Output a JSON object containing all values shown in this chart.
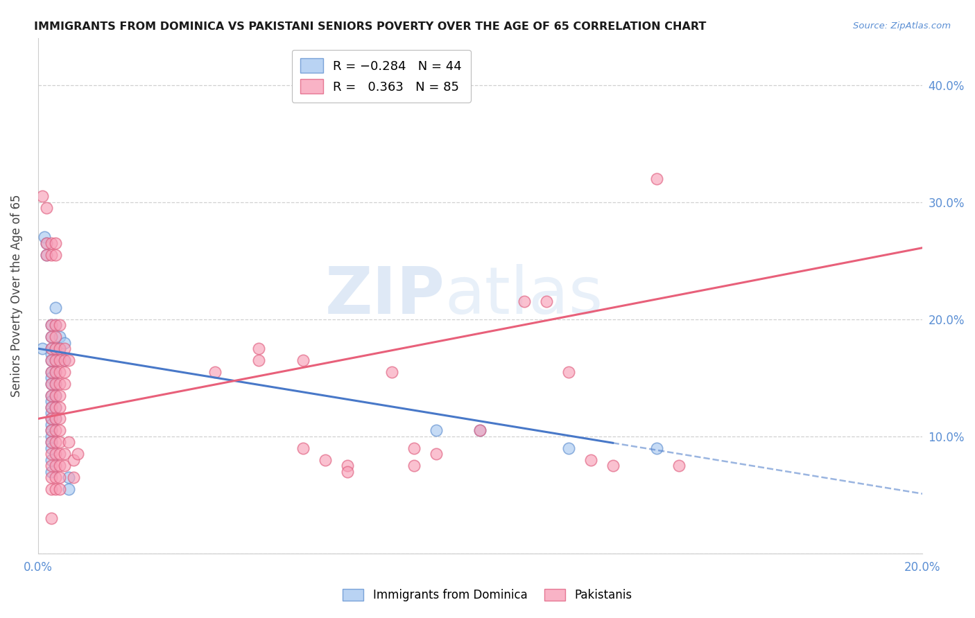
{
  "title": "IMMIGRANTS FROM DOMINICA VS PAKISTANI SENIORS POVERTY OVER THE AGE OF 65 CORRELATION CHART",
  "source": "Source: ZipAtlas.com",
  "ylabel": "Seniors Poverty Over the Age of 65",
  "y_ticks": [
    0.0,
    0.1,
    0.2,
    0.3,
    0.4
  ],
  "y_tick_labels": [
    "",
    "10.0%",
    "20.0%",
    "30.0%",
    "40.0%"
  ],
  "xlim": [
    0.0,
    0.2
  ],
  "ylim": [
    0.0,
    0.44
  ],
  "blue_R": -0.284,
  "blue_N": 44,
  "pink_R": 0.363,
  "pink_N": 85,
  "legend_label_blue": "Immigrants from Dominica",
  "legend_label_pink": "Pakistanis",
  "watermark_zip": "ZIP",
  "watermark_atlas": "atlas",
  "background_color": "#ffffff",
  "grid_color": "#d0d0d0",
  "blue_fill": "#a8c8f0",
  "blue_edge": "#6090d0",
  "pink_fill": "#f8a0b8",
  "pink_edge": "#e06080",
  "blue_line": "#4878c8",
  "pink_line": "#e8607a",
  "blue_scatter": [
    [
      0.001,
      0.175
    ],
    [
      0.0015,
      0.27
    ],
    [
      0.002,
      0.265
    ],
    [
      0.002,
      0.255
    ],
    [
      0.003,
      0.195
    ],
    [
      0.003,
      0.185
    ],
    [
      0.003,
      0.175
    ],
    [
      0.003,
      0.17
    ],
    [
      0.003,
      0.165
    ],
    [
      0.003,
      0.155
    ],
    [
      0.003,
      0.15
    ],
    [
      0.003,
      0.145
    ],
    [
      0.003,
      0.135
    ],
    [
      0.003,
      0.13
    ],
    [
      0.003,
      0.125
    ],
    [
      0.003,
      0.12
    ],
    [
      0.003,
      0.115
    ],
    [
      0.003,
      0.11
    ],
    [
      0.003,
      0.105
    ],
    [
      0.003,
      0.1
    ],
    [
      0.003,
      0.095
    ],
    [
      0.003,
      0.09
    ],
    [
      0.003,
      0.08
    ],
    [
      0.003,
      0.07
    ],
    [
      0.004,
      0.21
    ],
    [
      0.004,
      0.195
    ],
    [
      0.004,
      0.175
    ],
    [
      0.004,
      0.165
    ],
    [
      0.004,
      0.155
    ],
    [
      0.004,
      0.145
    ],
    [
      0.004,
      0.135
    ],
    [
      0.004,
      0.125
    ],
    [
      0.004,
      0.115
    ],
    [
      0.005,
      0.185
    ],
    [
      0.005,
      0.175
    ],
    [
      0.006,
      0.18
    ],
    [
      0.006,
      0.165
    ],
    [
      0.007,
      0.065
    ],
    [
      0.007,
      0.055
    ],
    [
      0.09,
      0.105
    ],
    [
      0.1,
      0.105
    ],
    [
      0.12,
      0.09
    ],
    [
      0.14,
      0.09
    ]
  ],
  "pink_scatter": [
    [
      0.001,
      0.305
    ],
    [
      0.002,
      0.295
    ],
    [
      0.002,
      0.265
    ],
    [
      0.002,
      0.255
    ],
    [
      0.003,
      0.265
    ],
    [
      0.003,
      0.255
    ],
    [
      0.003,
      0.195
    ],
    [
      0.003,
      0.185
    ],
    [
      0.003,
      0.175
    ],
    [
      0.003,
      0.165
    ],
    [
      0.003,
      0.155
    ],
    [
      0.003,
      0.145
    ],
    [
      0.003,
      0.135
    ],
    [
      0.003,
      0.125
    ],
    [
      0.003,
      0.115
    ],
    [
      0.003,
      0.105
    ],
    [
      0.003,
      0.095
    ],
    [
      0.003,
      0.085
    ],
    [
      0.003,
      0.075
    ],
    [
      0.003,
      0.065
    ],
    [
      0.003,
      0.055
    ],
    [
      0.003,
      0.03
    ],
    [
      0.004,
      0.265
    ],
    [
      0.004,
      0.255
    ],
    [
      0.004,
      0.195
    ],
    [
      0.004,
      0.185
    ],
    [
      0.004,
      0.175
    ],
    [
      0.004,
      0.165
    ],
    [
      0.004,
      0.155
    ],
    [
      0.004,
      0.145
    ],
    [
      0.004,
      0.135
    ],
    [
      0.004,
      0.125
    ],
    [
      0.004,
      0.115
    ],
    [
      0.004,
      0.105
    ],
    [
      0.004,
      0.095
    ],
    [
      0.004,
      0.085
    ],
    [
      0.004,
      0.075
    ],
    [
      0.004,
      0.065
    ],
    [
      0.004,
      0.055
    ],
    [
      0.005,
      0.195
    ],
    [
      0.005,
      0.175
    ],
    [
      0.005,
      0.165
    ],
    [
      0.005,
      0.155
    ],
    [
      0.005,
      0.145
    ],
    [
      0.005,
      0.135
    ],
    [
      0.005,
      0.125
    ],
    [
      0.005,
      0.115
    ],
    [
      0.005,
      0.105
    ],
    [
      0.005,
      0.095
    ],
    [
      0.005,
      0.085
    ],
    [
      0.005,
      0.075
    ],
    [
      0.005,
      0.065
    ],
    [
      0.005,
      0.055
    ],
    [
      0.006,
      0.175
    ],
    [
      0.006,
      0.165
    ],
    [
      0.006,
      0.155
    ],
    [
      0.006,
      0.145
    ],
    [
      0.006,
      0.085
    ],
    [
      0.006,
      0.075
    ],
    [
      0.007,
      0.165
    ],
    [
      0.007,
      0.095
    ],
    [
      0.008,
      0.08
    ],
    [
      0.008,
      0.065
    ],
    [
      0.009,
      0.085
    ],
    [
      0.04,
      0.155
    ],
    [
      0.05,
      0.175
    ],
    [
      0.05,
      0.165
    ],
    [
      0.06,
      0.165
    ],
    [
      0.06,
      0.09
    ],
    [
      0.065,
      0.08
    ],
    [
      0.07,
      0.075
    ],
    [
      0.07,
      0.07
    ],
    [
      0.08,
      0.155
    ],
    [
      0.085,
      0.09
    ],
    [
      0.085,
      0.075
    ],
    [
      0.09,
      0.085
    ],
    [
      0.1,
      0.105
    ],
    [
      0.11,
      0.215
    ],
    [
      0.115,
      0.215
    ],
    [
      0.12,
      0.155
    ],
    [
      0.125,
      0.08
    ],
    [
      0.13,
      0.075
    ],
    [
      0.14,
      0.32
    ],
    [
      0.145,
      0.075
    ]
  ],
  "blue_line_x": [
    0.0,
    0.14,
    0.2
  ],
  "blue_line_y_intercept": 0.175,
  "blue_line_slope": -0.62,
  "pink_line_x": [
    0.0,
    0.2
  ],
  "pink_line_y_intercept": 0.115,
  "pink_line_slope": 0.73
}
